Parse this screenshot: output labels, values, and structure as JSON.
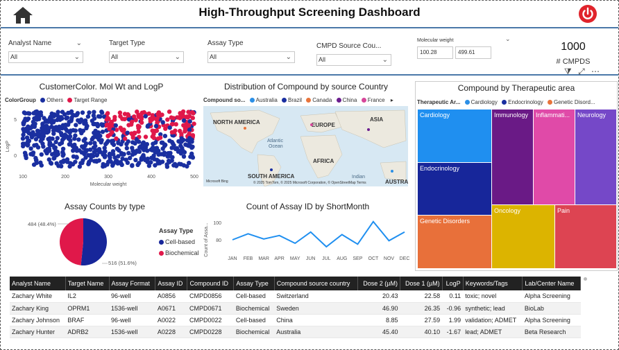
{
  "header": {
    "title": "High-Throughput Screening Dashboard"
  },
  "filters": [
    {
      "label": "Analyst Name",
      "value": "All"
    },
    {
      "label": "Target Type",
      "value": "All"
    },
    {
      "label": "Assay Type",
      "value": "All"
    },
    {
      "label": "CMPD Source Cou...",
      "value": "All"
    }
  ],
  "molecular_weight": {
    "label": "Molecular weight",
    "min": "100.28",
    "max": "499.61"
  },
  "card": {
    "value": "1000",
    "label": "# CMPDS"
  },
  "scatter": {
    "title": "CustomerColor. Mol Wt and LogP",
    "legend_title": "ColorGroup",
    "legend": [
      {
        "name": "Others",
        "color": "#1a2fa0"
      },
      {
        "name": "Target Range",
        "color": "#e0184a"
      }
    ],
    "xlabel": "Molecular weight",
    "ylabel": "LogP",
    "xticks": [
      "100",
      "200",
      "300",
      "400",
      "500"
    ],
    "yticks": [
      "5",
      "0"
    ]
  },
  "map": {
    "title": "Distribution of Compound by source Country",
    "legend_title": "Compound so...",
    "legend": [
      {
        "name": "Australia",
        "color": "#2b8fe6"
      },
      {
        "name": "Brazil",
        "color": "#1a2fa0"
      },
      {
        "name": "Canada",
        "color": "#e8743b"
      },
      {
        "name": "China",
        "color": "#6b1d8e"
      },
      {
        "name": "France",
        "color": "#d6479a"
      }
    ],
    "labels": {
      "north_america": "NORTH AMERICA",
      "europe": "EUROPE",
      "asia": "ASIA",
      "atlantic": "Atlantic",
      "ocean": "Ocean",
      "africa": "AFRICA",
      "south_america": "SOUTH AMERICA",
      "indian": "Indian",
      "austra": "AUSTRA",
      "bing": "Microsoft Bing",
      "copyright": "© 2025 TomTom, © 2025 Microsoft Corporation, © OpenStreetMap  Terms"
    }
  },
  "treemap": {
    "title": "Compound by Therapeutic area",
    "legend_title": "Therapeutic Ar...",
    "legend": [
      {
        "name": "Cardiology",
        "color": "#2b8fe6"
      },
      {
        "name": "Endocrinology",
        "color": "#1a2fa0"
      },
      {
        "name": "Genetic Disord...",
        "color": "#e8743b"
      }
    ],
    "tiles": [
      {
        "name": "Cardiology",
        "color": "#1f8ff0"
      },
      {
        "name": "Endocrinology",
        "color": "#17269a"
      },
      {
        "name": "Genetic Disorders",
        "color": "#e8703a"
      },
      {
        "name": "Immunology",
        "color": "#6a1a86"
      },
      {
        "name": "Inflammati...",
        "color": "#e04aa8"
      },
      {
        "name": "Neurology",
        "color": "#7548c8"
      },
      {
        "name": "Oncology",
        "color": "#dcb400"
      },
      {
        "name": "Pain",
        "color": "#dd4452"
      }
    ]
  },
  "pie": {
    "title": "Assay Counts by type",
    "legend_title": "Assay Type",
    "slices": [
      {
        "name": "Cell-based",
        "value": 516,
        "label": "516 (51.6%)",
        "color": "#17269a"
      },
      {
        "name": "Biochemical",
        "value": 484,
        "label": "484 (48.4%)",
        "color": "#e0184a"
      }
    ]
  },
  "chart_data": {
    "type": "line",
    "title": "Count of Assay ID by ShortMonth",
    "ylabel": "Count of Assa...",
    "categories": [
      "JAN",
      "FEB",
      "MAR",
      "APR",
      "MAY",
      "JUN",
      "JUL",
      "AUG",
      "SEP",
      "OCT",
      "NOV",
      "DEC"
    ],
    "values": [
      80,
      87,
      81,
      85,
      76,
      89,
      72,
      86,
      75,
      101,
      79,
      89
    ],
    "yticks": [
      "100",
      "80"
    ],
    "ylim": [
      68,
      108
    ],
    "color": "#1f8ff0"
  },
  "table": {
    "columns": [
      "Analyst Name",
      "Target Name",
      "Assay Format",
      "Assay ID",
      "Compound ID",
      "Assay Type",
      "Compound source country",
      "Dose 2 (µM)",
      "Dose 1 (µM)",
      "LogP",
      "Keywords/Tags",
      "Lab/Center Name"
    ],
    "rows": [
      [
        "Zachary White",
        "IL2",
        "96-well",
        "A0856",
        "CMPD0856",
        "Cell-based",
        "Switzerland",
        "20.43",
        "22.58",
        "0.11",
        "toxic; novel",
        "Alpha Screening"
      ],
      [
        "Zachary King",
        "OPRM1",
        "1536-well",
        "A0671",
        "CMPD0671",
        "Biochemical",
        "Sweden",
        "46.90",
        "26.35",
        "-0.96",
        "synthetic; lead",
        "BioLab"
      ],
      [
        "Zachary Johnson",
        "BRAF",
        "96-well",
        "A0022",
        "CMPD0022",
        "Cell-based",
        "China",
        "8.85",
        "27.59",
        "1.99",
        "validation; ADMET",
        "Alpha Screening"
      ],
      [
        "Zachary Hunter",
        "ADRB2",
        "1536-well",
        "A0228",
        "CMPD0228",
        "Biochemical",
        "Australia",
        "45.40",
        "40.10",
        "-1.67",
        "lead; ADMET",
        "Beta Research"
      ]
    ]
  }
}
